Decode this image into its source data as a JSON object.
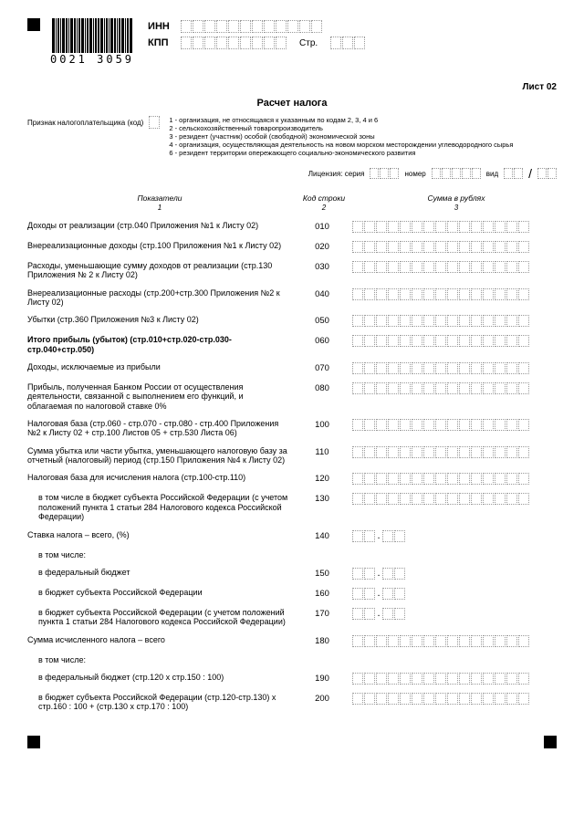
{
  "barcode_text": "0021 3059",
  "inn_label": "ИНН",
  "kpp_label": "КПП",
  "str_label": "Стр.",
  "sheet": "Лист 02",
  "title": "Расчет налога",
  "signal_label": "Признак налогоплательщика (код)",
  "notes": [
    "1 - организация, не относящаяся к указанным по кодам 2, 3, 4 и 6",
    "2 - сельскохозяйственный товаропроизводитель",
    "3 - резидент (участник) особой (свободной) экономической зоны",
    "4 - организация, осуществляющая деятельность на новом морском месторождении углеводородного сырья",
    "6 - резидент территории опережающего социально-экономического развития"
  ],
  "license_label": "Лицензия:  серия",
  "license_num": "номер",
  "license_vid": "вид",
  "head_ind": "Показатели",
  "head_code": "Код строки",
  "head_sum": "Сумма в рублях",
  "rows": [
    {
      "ind": "Доходы от реализации (стр.040 Приложения №1 к Листу 02)",
      "code": "010",
      "len": 15
    },
    {
      "ind": "Внереализационные доходы (стр.100 Приложения №1 к Листу 02)",
      "code": "020",
      "len": 15
    },
    {
      "ind": "Расходы, уменьшающие сумму доходов от реализации (стр.130 Приложения № 2 к Листу 02)",
      "code": "030",
      "len": 15
    },
    {
      "ind": "Внереализационные расходы (стр.200+стр.300 Приложения №2 к Листу 02)",
      "code": "040",
      "len": 15
    },
    {
      "ind": "Убытки (стр.360 Приложения №3 к Листу 02)",
      "code": "050",
      "len": 15
    },
    {
      "ind": "Итого прибыль (убыток) (стр.010+стр.020-стр.030-стр.040+стр.050)",
      "code": "060",
      "len": 15,
      "bold": true
    },
    {
      "ind": "Доходы, исключаемые из прибыли",
      "code": "070",
      "len": 15
    },
    {
      "ind": "Прибыль, полученная Банком России от осуществления деятельности, связанной с выполнением его функций, и облагаемая по налоговой ставке 0%",
      "code": "080",
      "len": 15
    },
    {
      "ind": "Налоговая база\n(стр.060 - стр.070 - стр.080 - стр.400 Приложения №2 к Листу 02 + стр.100 Листов 05 + стр.530 Листа 06)",
      "code": "100",
      "len": 15
    },
    {
      "ind": "Сумма убытка или части убытка, уменьшающего налоговую базу за отчетный (налоговый) период (стр.150 Приложения №4 к Листу 02)",
      "code": "110",
      "len": 15
    },
    {
      "ind": "Налоговая база для исчисления налога (стр.100-стр.110)",
      "code": "120",
      "len": 15
    },
    {
      "ind": "в том числе в бюджет субъекта Российской Федерации (с учетом положений пункта 1 статьи 284 Налогового кодекса Российской Федерации)",
      "code": "130",
      "len": 15,
      "sub": true
    },
    {
      "ind": "Ставка налога – всего, (%)",
      "code": "140",
      "len": 5
    },
    {
      "ind": "в том числе:",
      "code": "",
      "len": 0,
      "sub": true
    },
    {
      "ind": "в федеральный бюджет",
      "code": "150",
      "len": 5,
      "sub": true
    },
    {
      "ind": "в бюджет субъекта Российской Федерации",
      "code": "160",
      "len": 5,
      "sub": true
    },
    {
      "ind": "в бюджет субъекта Российской Федерации (с учетом положений пункта 1 статьи 284 Налогового кодекса Российской Федерации)",
      "code": "170",
      "len": 5,
      "sub": true
    },
    {
      "ind": "Сумма исчисленного налога – всего",
      "code": "180",
      "len": 15
    },
    {
      "ind": "в том числе:",
      "code": "",
      "len": 0,
      "sub": true
    },
    {
      "ind": "в федеральный бюджет (стр.120 х стр.150 : 100)",
      "code": "190",
      "len": 15,
      "sub": true
    },
    {
      "ind": "в бюджет субъекта Российской Федерации\n(стр.120-стр.130) х стр.160 : 100 + (стр.130 х стр.170 : 100)",
      "code": "200",
      "len": 15,
      "sub": true
    }
  ],
  "colors": {
    "cell_border": "#999",
    "text": "#000"
  }
}
